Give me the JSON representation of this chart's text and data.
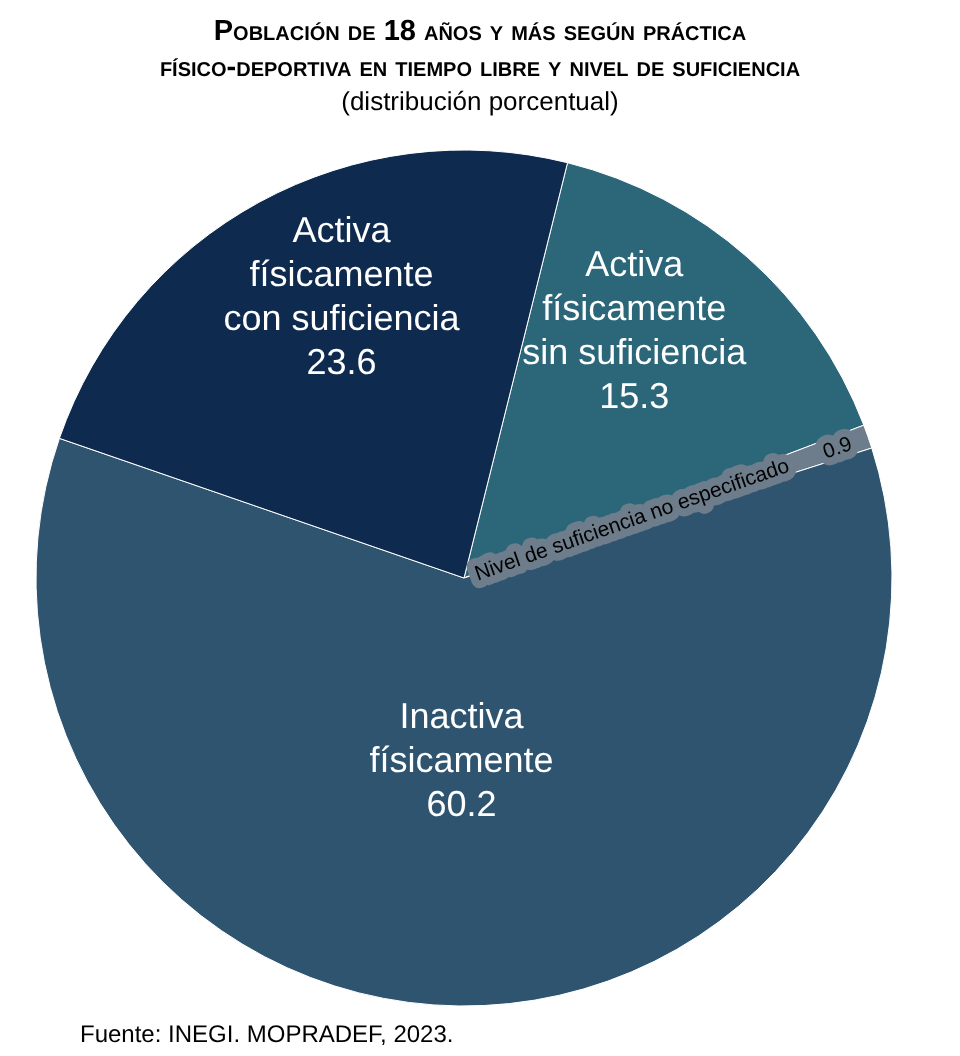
{
  "chart_data": {
    "type": "pie",
    "title": "Población de 18 años y más según práctica físico-deportiva en tiempo libre y nivel de suficiencia",
    "subtitle": "(distribución porcentual)",
    "categories": [
      "Activa físicamente sin suficiencia",
      "Nivel de suficiencia no especificado",
      "Inactiva físicamente",
      "Activa físicamente con suficiencia"
    ],
    "values": [
      15.3,
      0.9,
      60.2,
      23.6
    ],
    "colors": [
      "#2b6779",
      "#6e7d8b",
      "#2f5470",
      "#0e2a4e"
    ],
    "data_labels": true,
    "annotations": [
      "Fuente: INEGI. MOPRADEF, 2023."
    ]
  }
}
